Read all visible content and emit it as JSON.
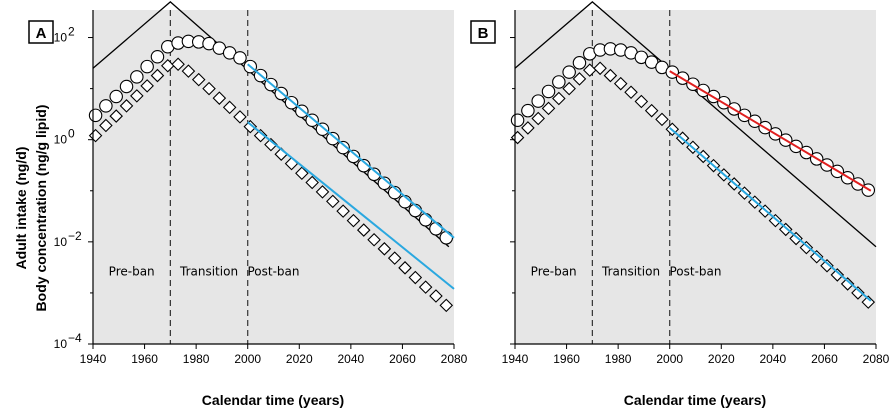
{
  "chart_data": [
    {
      "panel_label": "A",
      "type": "line",
      "xlabel": "Calendar time (years)",
      "ylabel_line1": "Adult intake (ng/d)",
      "ylabel_line2": "Body concentration (ng/g lipid)",
      "xlim": [
        1940,
        2080
      ],
      "ylim": [
        0.0001,
        1000
      ],
      "y_scale": "log",
      "x_ticks": [
        1940,
        1960,
        1980,
        2000,
        2020,
        2040,
        2060,
        2080
      ],
      "y_ticks": [
        {
          "value": 0.0001,
          "base": "10",
          "exp": "−4"
        },
        {
          "value": 0.01,
          "base": "10",
          "exp": "−2"
        },
        {
          "value": 1,
          "base": "10",
          "exp": "0"
        },
        {
          "value": 100,
          "base": "10",
          "exp": "2"
        }
      ],
      "vlines": [
        1970,
        2000
      ],
      "regions": [
        {
          "label": "Pre-ban",
          "x": 1955
        },
        {
          "label": "Transition",
          "x": 1985
        },
        {
          "label": "Post-ban",
          "x": 2010
        }
      ],
      "grid": false,
      "background": "#e6e6e6",
      "series": [
        {
          "kind": "line",
          "color": "#000000",
          "x": [
            1940,
            1970,
            2078
          ],
          "y": [
            25,
            500,
            0.008
          ]
        },
        {
          "kind": "circles",
          "x": [
            1941,
            1945,
            1949,
            1953,
            1957,
            1961,
            1965,
            1969,
            1973,
            1977,
            1981,
            1985,
            1989,
            1993,
            1997,
            2001,
            2005,
            2009,
            2013,
            2017,
            2021,
            2025,
            2029,
            2033,
            2037,
            2041,
            2045,
            2049,
            2053,
            2057,
            2061,
            2065,
            2069,
            2073,
            2077
          ],
          "y": [
            3,
            4.6,
            7,
            11,
            17,
            27,
            42,
            66,
            78,
            84,
            82,
            76,
            62,
            50,
            40,
            27,
            18,
            12,
            8,
            5.3,
            3.6,
            2.4,
            1.6,
            1.05,
            0.7,
            0.47,
            0.31,
            0.21,
            0.14,
            0.092,
            0.061,
            0.041,
            0.027,
            0.018,
            0.012
          ]
        },
        {
          "kind": "diamonds",
          "x": [
            1941,
            1945,
            1949,
            1953,
            1957,
            1961,
            1965,
            1969,
            1973,
            1977,
            1981,
            1985,
            1989,
            1993,
            1997,
            2001,
            2005,
            2009,
            2013,
            2017,
            2021,
            2025,
            2029,
            2033,
            2037,
            2041,
            2045,
            2049,
            2053,
            2057,
            2061,
            2065,
            2069,
            2073,
            2077
          ],
          "y": [
            1.2,
            1.9,
            2.9,
            4.6,
            7.2,
            11.3,
            18,
            28,
            30,
            22,
            15,
            10,
            6.5,
            4.3,
            2.8,
            1.8,
            1.2,
            0.8,
            0.52,
            0.34,
            0.22,
            0.145,
            0.095,
            0.062,
            0.04,
            0.026,
            0.017,
            0.011,
            0.0073,
            0.0048,
            0.0031,
            0.002,
            0.0013,
            0.00087,
            0.00057
          ]
        },
        {
          "kind": "fit",
          "color": "#2aa8e0",
          "x": [
            2000,
            2080
          ],
          "y": [
            30,
            0.012
          ]
        },
        {
          "kind": "fit",
          "color": "#2aa8e0",
          "x": [
            2000,
            2080
          ],
          "y": [
            2.2,
            0.0012
          ]
        }
      ]
    },
    {
      "panel_label": "B",
      "type": "line",
      "xlabel": "Calendar time (years)",
      "xlim": [
        1940,
        2080
      ],
      "ylim": [
        0.0001,
        1000
      ],
      "y_scale": "log",
      "x_ticks": [
        1940,
        1960,
        1980,
        2000,
        2020,
        2040,
        2060,
        2080
      ],
      "vlines": [
        1970,
        2000
      ],
      "regions": [
        {
          "label": "Pre-ban",
          "x": 1955
        },
        {
          "label": "Transition",
          "x": 1985
        },
        {
          "label": "Post-ban",
          "x": 2010
        }
      ],
      "grid": false,
      "background": "#e6e6e6",
      "series": [
        {
          "kind": "line",
          "color": "#000000",
          "x": [
            1940,
            1970,
            2080
          ],
          "y": [
            25,
            500,
            0.008
          ]
        },
        {
          "kind": "circles",
          "x": [
            1941,
            1945,
            1949,
            1953,
            1957,
            1961,
            1965,
            1969,
            1973,
            1977,
            1981,
            1985,
            1989,
            1993,
            1997,
            2001,
            2005,
            2009,
            2013,
            2017,
            2021,
            2025,
            2029,
            2033,
            2037,
            2041,
            2045,
            2049,
            2053,
            2057,
            2061,
            2065,
            2069,
            2073,
            2077
          ],
          "y": [
            2.4,
            3.7,
            5.7,
            8.8,
            13.5,
            21,
            32,
            48,
            57,
            60,
            57,
            50,
            41,
            33,
            26,
            21,
            16,
            12.2,
            9.2,
            7,
            5.3,
            4,
            3,
            2.3,
            1.72,
            1.3,
            0.98,
            0.74,
            0.56,
            0.42,
            0.32,
            0.24,
            0.18,
            0.136,
            0.103
          ]
        },
        {
          "kind": "diamonds",
          "x": [
            1941,
            1945,
            1949,
            1953,
            1957,
            1961,
            1965,
            1969,
            1973,
            1977,
            1981,
            1985,
            1989,
            1993,
            1997,
            2001,
            2005,
            2009,
            2013,
            2017,
            2021,
            2025,
            2029,
            2033,
            2037,
            2041,
            2045,
            2049,
            2053,
            2057,
            2061,
            2065,
            2069,
            2073,
            2077
          ],
          "y": [
            1.1,
            1.7,
            2.6,
            4.1,
            6.4,
            10,
            15.5,
            23,
            25,
            18,
            12.5,
            8.5,
            5.6,
            3.7,
            2.5,
            1.6,
            1.07,
            0.71,
            0.47,
            0.31,
            0.205,
            0.136,
            0.09,
            0.06,
            0.04,
            0.026,
            0.0175,
            0.0116,
            0.0077,
            0.0051,
            0.0034,
            0.00225,
            0.0015,
            0.001,
            0.00066
          ]
        },
        {
          "kind": "fit",
          "color": "#e02020",
          "x": [
            2000,
            2078
          ],
          "y": [
            22,
            0.1
          ]
        },
        {
          "kind": "fit",
          "color": "#2aa8e0",
          "x": [
            2000,
            2078
          ],
          "y": [
            1.7,
            0.0007
          ]
        }
      ]
    }
  ]
}
